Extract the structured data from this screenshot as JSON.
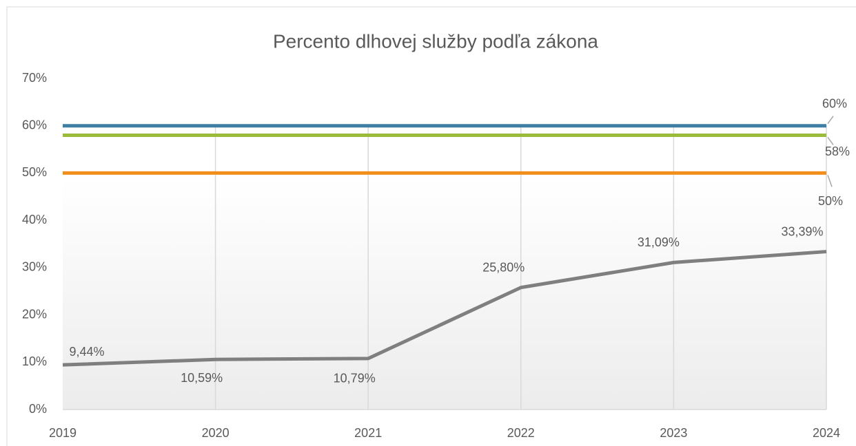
{
  "chart_data": {
    "type": "line",
    "title": "Percento dlhovej služby podľa zákona",
    "categories": [
      "2019",
      "2020",
      "2021",
      "2022",
      "2023",
      "2024"
    ],
    "ylim": [
      0,
      70
    ],
    "yticks": [
      {
        "value": 0,
        "label": "0%"
      },
      {
        "value": 10,
        "label": "10%"
      },
      {
        "value": 20,
        "label": "20%"
      },
      {
        "value": 30,
        "label": "30%"
      },
      {
        "value": 40,
        "label": "40%"
      },
      {
        "value": 50,
        "label": "50%"
      },
      {
        "value": 60,
        "label": "60%"
      },
      {
        "value": 70,
        "label": "70%"
      }
    ],
    "grid": true,
    "series": [
      {
        "color": "#3f7fa6",
        "values": [
          60,
          60,
          60,
          60,
          60,
          60
        ],
        "value_labels": [
          null,
          null,
          null,
          null,
          null,
          "60%"
        ]
      },
      {
        "color": "#9bbb3b",
        "values": [
          58,
          58,
          58,
          58,
          58,
          58
        ],
        "value_labels": [
          null,
          null,
          null,
          null,
          null,
          "58%"
        ]
      },
      {
        "color": "#f28e1c",
        "values": [
          50,
          50,
          50,
          50,
          50,
          50
        ],
        "value_labels": [
          null,
          null,
          null,
          null,
          null,
          "50%"
        ]
      },
      {
        "color": "#7f7f7f",
        "values": [
          9.44,
          10.59,
          10.79,
          25.8,
          31.09,
          33.39
        ],
        "value_labels": [
          "9,44%",
          "10,59%",
          "10,79%",
          "25,80%",
          "31,09%",
          "33,39%"
        ]
      }
    ]
  }
}
